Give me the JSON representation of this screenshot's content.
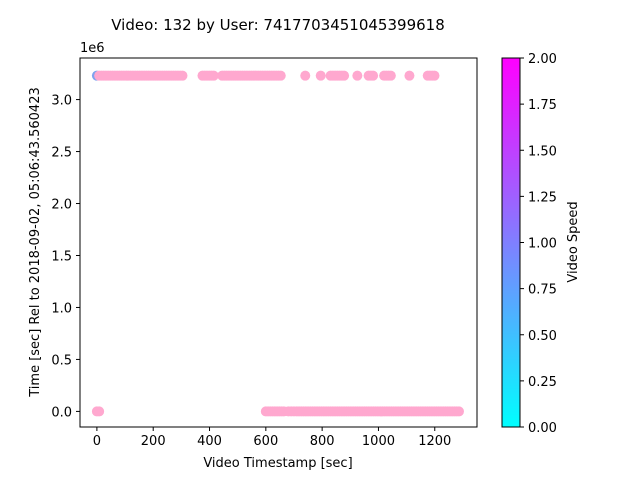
{
  "chart_data": {
    "type": "scatter",
    "title": "Video: 132 by User: 7417703451045399618",
    "xlabel": "Video Timestamp [sec]",
    "ylabel": "Time [sec] Rel to 2018-09-02, 05:06:43.560423",
    "y_offset_label": "1e6",
    "xlim": [
      -60,
      1350
    ],
    "ylim": [
      -150000,
      3400000
    ],
    "y_scale": 1000000,
    "xticks": [
      0,
      200,
      400,
      600,
      800,
      1000,
      1200
    ],
    "xtick_labels": [
      "0",
      "200",
      "400",
      "600",
      "800",
      "1000",
      "1200"
    ],
    "yticks": [
      0,
      0.5,
      1.0,
      1.5,
      2.0,
      2.5,
      3.0
    ],
    "ytick_labels": [
      "0.0",
      "0.5",
      "1.0",
      "1.5",
      "2.0",
      "2.5",
      "3.0"
    ],
    "grid": false,
    "point_color": "#ffa8cf",
    "early_point_color": "#7fa3ee",
    "colorbar": {
      "label": "Video Speed",
      "range": [
        0,
        2
      ],
      "ticks": [
        "0.00",
        "0.25",
        "0.50",
        "0.75",
        "1.00",
        "1.25",
        "1.50",
        "1.75",
        "2.00"
      ],
      "color_low": "#00ffff",
      "color_high": "#ff00ff"
    },
    "series": [
      {
        "y": 3230000,
        "x": [
          0,
          8,
          16,
          24,
          32,
          40,
          48,
          56,
          64,
          72,
          80,
          88,
          96,
          104,
          112,
          120,
          128,
          136,
          144,
          152,
          160,
          168,
          176,
          184,
          192,
          200,
          208,
          216,
          224,
          232,
          240,
          248,
          256,
          264,
          272,
          280,
          288,
          296,
          304,
          375,
          383,
          391,
          399,
          407,
          415,
          445,
          453,
          461,
          469,
          477,
          485,
          493,
          501,
          509,
          517,
          525,
          533,
          541,
          549,
          557,
          565,
          573,
          581,
          589,
          597,
          605,
          613,
          621,
          629,
          637,
          645,
          653,
          740,
          795,
          830,
          838,
          846,
          854,
          862,
          870,
          878,
          925,
          965,
          973,
          981,
          1020,
          1028,
          1036,
          1044,
          1110,
          1175,
          1183,
          1191,
          1199
        ]
      },
      {
        "y": 0,
        "x": [
          0,
          8,
          600,
          608,
          616,
          624,
          632,
          640,
          648,
          656,
          664,
          680,
          690,
          700,
          710,
          718,
          726,
          734,
          742,
          750,
          758,
          766,
          774,
          782,
          790,
          798,
          806,
          814,
          822,
          830,
          838,
          846,
          854,
          862,
          870,
          878,
          886,
          894,
          902,
          910,
          918,
          926,
          934,
          942,
          950,
          958,
          966,
          974,
          982,
          990,
          998,
          1006,
          1014,
          1022,
          1030,
          1038,
          1046,
          1054,
          1062,
          1070,
          1078,
          1086,
          1094,
          1102,
          1110,
          1118,
          1126,
          1134,
          1142,
          1150,
          1158,
          1166,
          1174,
          1182,
          1190,
          1198,
          1206,
          1214,
          1222,
          1230,
          1238,
          1246,
          1254,
          1262,
          1270,
          1278,
          1286
        ]
      }
    ]
  }
}
